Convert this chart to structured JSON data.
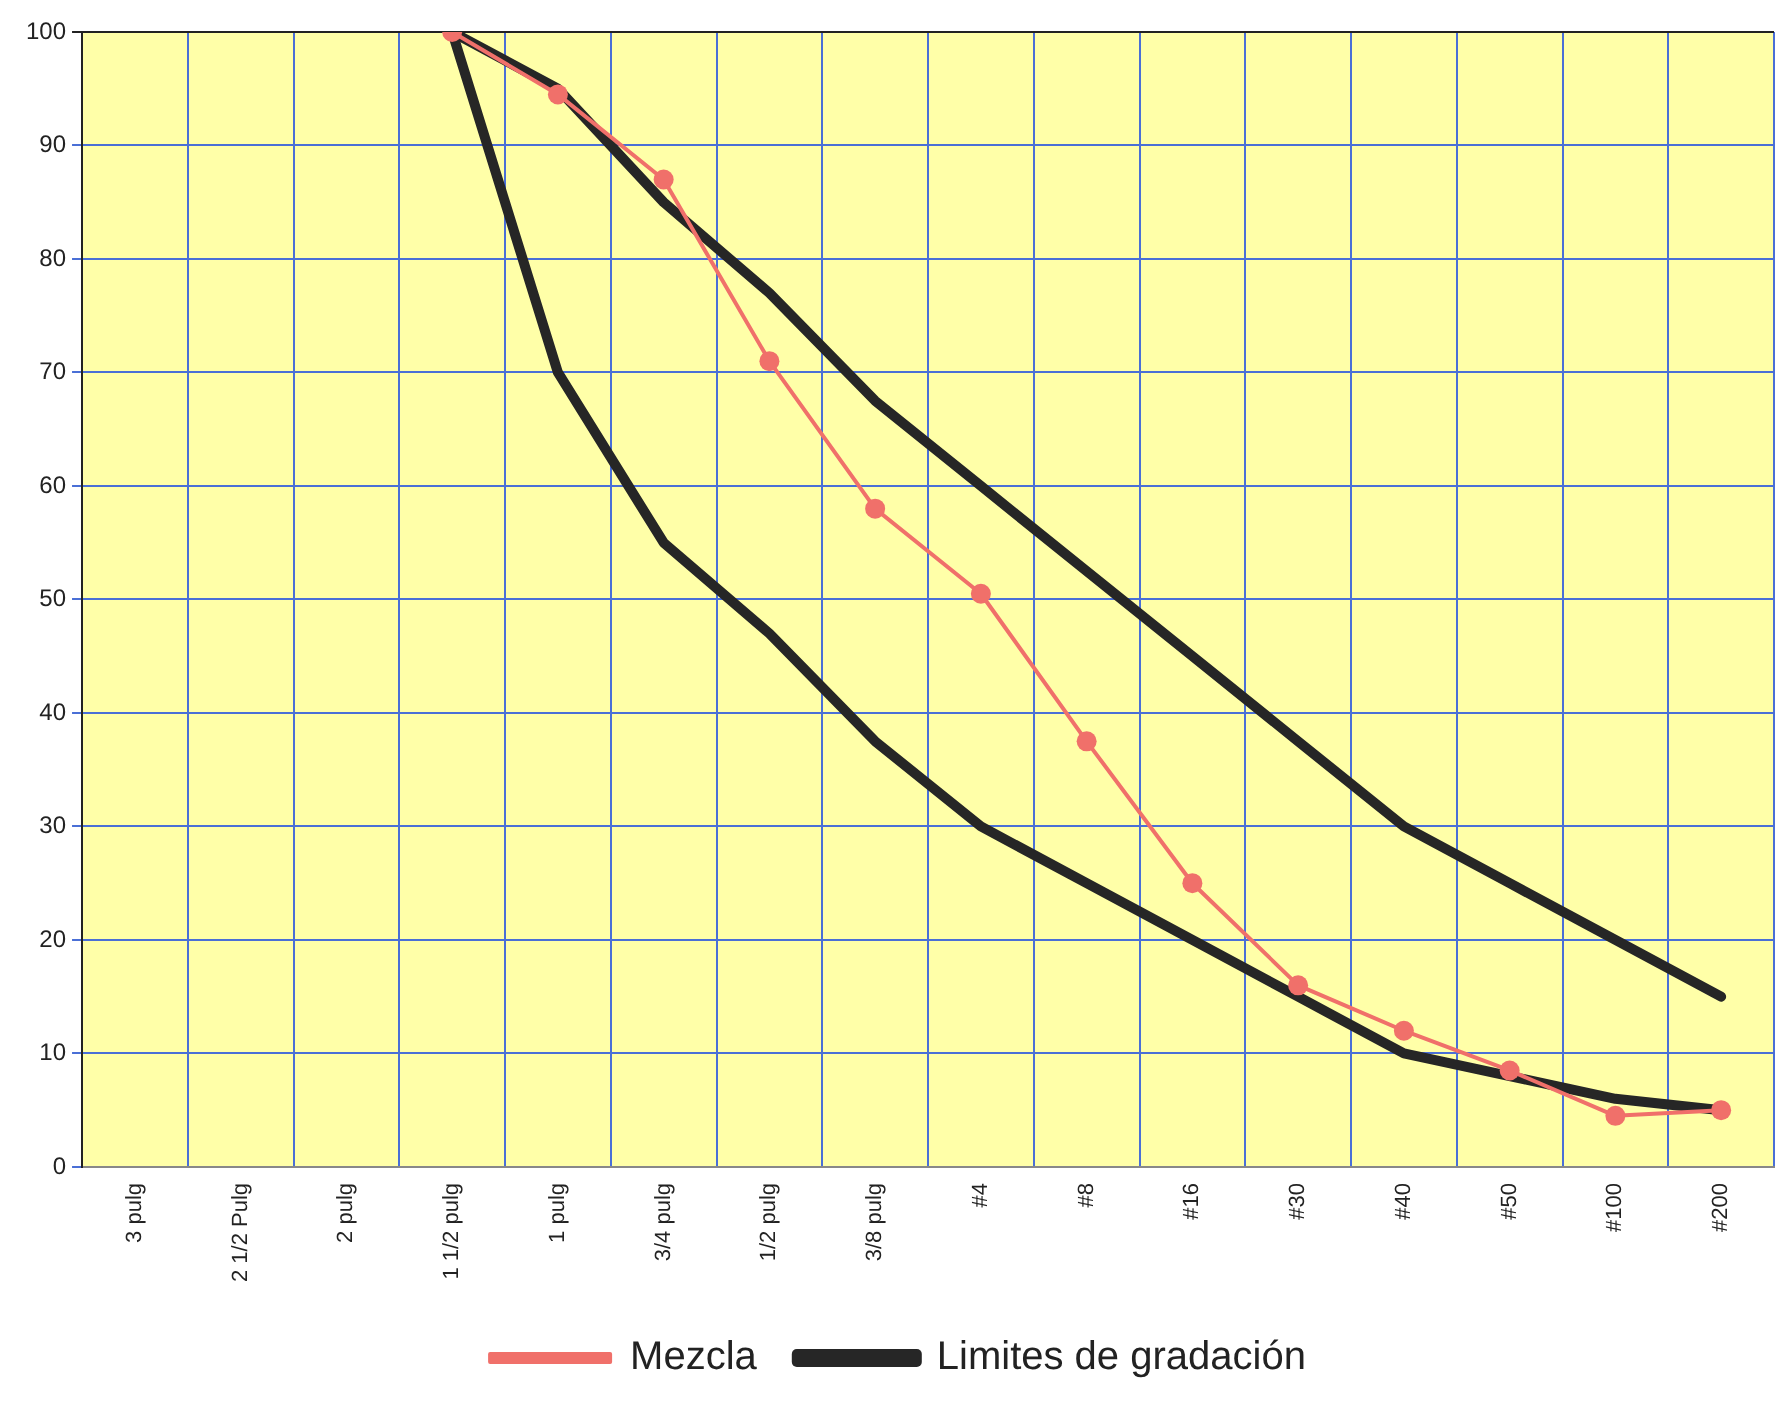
{
  "chart_data": {
    "type": "line",
    "categories": [
      "3 pulg",
      "2 1/2 Pulg",
      "2 pulg",
      "1 1/2 pulg",
      "1 pulg",
      "3/4 pulg",
      "1/2 pulg",
      "3/8 pulg",
      "#4",
      "#8",
      "#16",
      "#30",
      "#40",
      "#50",
      "#100",
      "#200"
    ],
    "series": [
      {
        "name": "Limites de gradación",
        "color": "#262626",
        "marker": "none",
        "values": [
          null,
          null,
          null,
          100,
          95,
          85,
          77,
          67.5,
          60,
          52.5,
          45,
          37.5,
          30,
          25,
          20,
          15
        ]
      },
      {
        "color": "#262626",
        "marker": "none",
        "values": [
          null,
          null,
          null,
          100,
          70,
          55,
          47,
          37.5,
          30,
          25,
          20,
          15,
          10,
          8,
          6,
          5
        ]
      },
      {
        "name": "Mezcla",
        "color": "#f0706a",
        "marker": "circle",
        "values": [
          null,
          null,
          null,
          100,
          94.5,
          87,
          71,
          58,
          50.5,
          37.5,
          25,
          16,
          12,
          8.5,
          4.5,
          5
        ]
      }
    ],
    "ylim": [
      0,
      100
    ],
    "yticks": [
      0,
      10,
      20,
      30,
      40,
      50,
      60,
      70,
      80,
      90,
      100
    ],
    "grid": true,
    "legend": "bottom",
    "line_style": "solid"
  }
}
